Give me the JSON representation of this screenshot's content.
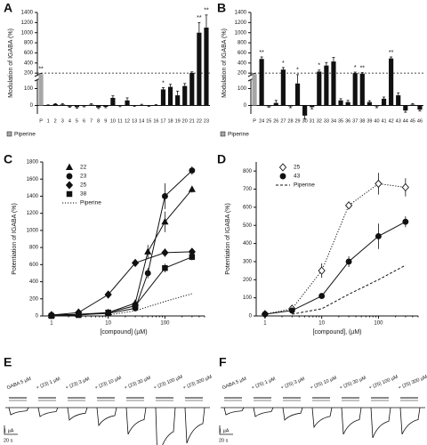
{
  "chart_data": [
    {
      "type": "bar",
      "panel": "A",
      "ylabel": "Modulation of IGABA (%)",
      "categories": [
        "P",
        "1",
        "2",
        "3",
        "4",
        "5",
        "6",
        "7",
        "8",
        "9",
        "10",
        "11",
        "12",
        "13",
        "14",
        "15",
        "16",
        "17",
        "18",
        "19",
        "20",
        "21",
        "22",
        "23"
      ],
      "values": [
        180,
        0,
        8,
        6,
        -6,
        -10,
        -4,
        5,
        -12,
        -8,
        45,
        -3,
        30,
        -2,
        3,
        -2,
        2,
        95,
        110,
        60,
        115,
        205,
        1000,
        1100
      ],
      "errors": [
        15,
        4,
        3,
        4,
        5,
        6,
        4,
        5,
        6,
        5,
        12,
        4,
        15,
        3,
        4,
        3,
        3,
        10,
        15,
        25,
        15,
        20,
        200,
        250
      ],
      "colors": [
        "#a6a6a6",
        "#111",
        "#111",
        "#111",
        "#111",
        "#111",
        "#111",
        "#111",
        "#111",
        "#111",
        "#111",
        "#111",
        "#111",
        "#111",
        "#111",
        "#111",
        "#111",
        "#111",
        "#111",
        "#111",
        "#111",
        "#111",
        "#111",
        "#111"
      ],
      "significance": [
        "**",
        null,
        null,
        null,
        null,
        null,
        null,
        null,
        null,
        null,
        null,
        null,
        null,
        null,
        null,
        null,
        null,
        "*",
        null,
        null,
        null,
        null,
        "**",
        "**"
      ],
      "legend_label": "Piperine",
      "ylim": [
        -50,
        1400
      ],
      "yticks": [
        0,
        100,
        200,
        400,
        600,
        800,
        1000,
        1200,
        1400
      ],
      "axis_break": 150,
      "reference_line": 200
    },
    {
      "type": "bar",
      "panel": "B",
      "ylabel": "Modulation of IGABA (%)",
      "categories": [
        "P",
        "24",
        "25",
        "26",
        "27",
        "28",
        "29",
        "30",
        "31",
        "32",
        "33",
        "34",
        "35",
        "36",
        "37",
        "38",
        "39",
        "40",
        "41",
        "42",
        "43",
        "44",
        "45",
        "46"
      ],
      "values": [
        180,
        480,
        -5,
        15,
        270,
        -5,
        130,
        -60,
        -10,
        230,
        350,
        430,
        30,
        20,
        200,
        190,
        20,
        -5,
        40,
        490,
        60,
        -30,
        5,
        -25
      ],
      "errors": [
        15,
        40,
        5,
        15,
        40,
        8,
        40,
        20,
        10,
        30,
        60,
        80,
        10,
        10,
        20,
        20,
        8,
        8,
        10,
        30,
        15,
        10,
        6,
        8
      ],
      "colors": [
        "#a6a6a6",
        "#111",
        "#111",
        "#111",
        "#111",
        "#111",
        "#111",
        "#111",
        "#111",
        "#111",
        "#111",
        "#111",
        "#111",
        "#111",
        "#111",
        "#111",
        "#111",
        "#111",
        "#111",
        "#111",
        "#111",
        "#111",
        "#111",
        "#111"
      ],
      "significance": [
        null,
        "**",
        null,
        null,
        "*",
        null,
        "*",
        null,
        null,
        "*",
        null,
        null,
        null,
        null,
        "*",
        "**",
        null,
        null,
        null,
        "**",
        null,
        null,
        null,
        null
      ],
      "legend_label": "Piperine",
      "ylim": [
        -50,
        1400
      ],
      "yticks": [
        0,
        100,
        200,
        400,
        600,
        800,
        1000,
        1200,
        1400
      ],
      "axis_break": 150,
      "reference_line": 200
    },
    {
      "type": "line",
      "panel": "C",
      "xlabel": "[compound] (µM)",
      "ylabel": "Potentiation of IGABA (%)",
      "xscale": "log",
      "xlim": [
        0.7,
        500
      ],
      "xticks": [
        1,
        10,
        100
      ],
      "ylim": [
        0,
        1800
      ],
      "yticks": [
        0,
        200,
        400,
        600,
        800,
        1000,
        1200,
        1400,
        1600,
        1800
      ],
      "legend_position": "upper left",
      "series": [
        {
          "name": "22",
          "marker": "triangle",
          "color": "#111",
          "line_style": "solid",
          "x": [
            1,
            3,
            10,
            30,
            50,
            100,
            300
          ],
          "values": [
            10,
            20,
            40,
            150,
            750,
            1100,
            1480
          ],
          "errors": [
            5,
            5,
            10,
            30,
            80,
            120,
            40
          ]
        },
        {
          "name": "23",
          "marker": "circle",
          "color": "#111",
          "line_style": "solid",
          "x": [
            1,
            3,
            10,
            30,
            50,
            100,
            300
          ],
          "values": [
            10,
            15,
            30,
            90,
            500,
            1400,
            1700
          ],
          "errors": [
            5,
            5,
            10,
            20,
            60,
            150,
            50
          ]
        },
        {
          "name": "25",
          "marker": "diamond",
          "color": "#111",
          "line_style": "solid",
          "x": [
            1,
            3,
            10,
            30,
            100,
            300
          ],
          "values": [
            10,
            40,
            250,
            620,
            740,
            750
          ],
          "errors": [
            5,
            10,
            30,
            40,
            50,
            40
          ]
        },
        {
          "name": "38",
          "marker": "square",
          "color": "#111",
          "line_style": "solid",
          "x": [
            1,
            3,
            10,
            30,
            100,
            300
          ],
          "values": [
            0,
            10,
            40,
            120,
            560,
            690
          ],
          "errors": [
            5,
            5,
            10,
            20,
            50,
            40
          ]
        },
        {
          "name": "Piperine",
          "marker": "none",
          "color": "#111",
          "line_style": "dotted",
          "x": [
            10,
            30,
            100,
            300
          ],
          "values": [
            10,
            60,
            170,
            260
          ]
        }
      ]
    },
    {
      "type": "line",
      "panel": "D",
      "xlabel": "[compound], (µM)",
      "ylabel": "Potentiation of IGABA (%)",
      "xscale": "log",
      "xlim": [
        0.7,
        500
      ],
      "xticks": [
        1,
        10,
        100
      ],
      "ylim": [
        0,
        850
      ],
      "yticks": [
        0,
        100,
        200,
        300,
        400,
        500,
        600,
        700,
        800
      ],
      "legend_position": "upper left",
      "series": [
        {
          "name": "25",
          "marker": "diamond",
          "color": "#111",
          "fill": "#fff",
          "line_style": "dotted",
          "x": [
            1,
            3,
            10,
            30,
            100,
            300
          ],
          "values": [
            10,
            40,
            250,
            610,
            730,
            710
          ],
          "errors": [
            5,
            10,
            40,
            20,
            60,
            50
          ]
        },
        {
          "name": "43",
          "marker": "circle",
          "color": "#111",
          "line_style": "solid",
          "x": [
            1,
            3,
            10,
            30,
            100,
            300
          ],
          "values": [
            10,
            30,
            110,
            300,
            440,
            520
          ],
          "errors": [
            5,
            5,
            15,
            30,
            70,
            30
          ]
        },
        {
          "name": "Piperine",
          "marker": "none",
          "color": "#111",
          "line_style": "dashed",
          "x": [
            3,
            10,
            30,
            100,
            300
          ],
          "values": [
            10,
            40,
            120,
            200,
            280
          ]
        }
      ]
    }
  ],
  "traces": [
    {
      "panel": "E",
      "conditions": [
        "GABA 5 µM",
        "+ (23) 1 µM",
        "+ (23) 3 µM",
        "+ (23) 10 µM",
        "+ (23) 30 µM",
        "+ (23) 100 µM",
        "+ (23) 300 µM"
      ],
      "scale_current": "1 µA",
      "scale_time": "20 s"
    },
    {
      "panel": "F",
      "conditions": [
        "GABA 5 µM",
        "+ (25) 1 µM",
        "+ (25) 3 µM",
        "+ (25) 10 µM",
        "+ (25) 30 µM",
        "+ (25) 100 µM",
        "+ (25) 300 µM"
      ],
      "scale_current": "1 µA",
      "scale_time": "20 s"
    }
  ]
}
